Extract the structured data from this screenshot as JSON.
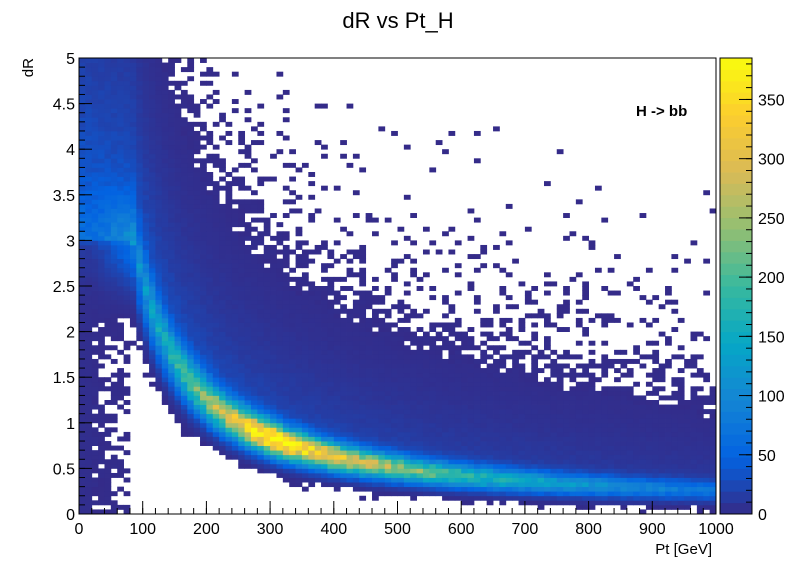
{
  "chart_data": {
    "type": "heatmap",
    "title": "dR vs Pt_H",
    "xlabel": "Pt [GeV]",
    "ylabel": "dR",
    "annotation": "H -> bb",
    "xlim": [
      0,
      1000
    ],
    "ylim": [
      0,
      5
    ],
    "x_bins": 100,
    "y_bins": 100,
    "x_ticks": [
      0,
      100,
      200,
      300,
      400,
      500,
      600,
      700,
      800,
      900,
      1000
    ],
    "x_tick_labels": [
      "0",
      "100",
      "200",
      "300",
      "400",
      "500",
      "600",
      "700",
      "800",
      "900",
      "1000"
    ],
    "y_ticks": [
      0,
      0.5,
      1,
      1.5,
      2,
      2.5,
      3,
      3.5,
      4,
      4.5,
      5
    ],
    "y_tick_labels": [
      "0",
      "0.5",
      "1",
      "1.5",
      "2",
      "2.5",
      "3",
      "3.5",
      "4",
      "4.5",
      "5"
    ],
    "z_range": [
      0,
      385
    ],
    "z_ticks": [
      0,
      50,
      100,
      150,
      200,
      250,
      300,
      350
    ],
    "z_tick_labels": [
      "0",
      "50",
      "100",
      "150",
      "200",
      "250",
      "300",
      "350"
    ],
    "ridge_model": "dR ≈ 2·mH/Pt with mH = 125 GeV (peak occupancy near Pt 300–400 GeV, dR 0.7–0.8)",
    "peak_count": 380,
    "palette": [
      "#352a87",
      "#0363e1",
      "#1485d4",
      "#06a7c6",
      "#38b99e",
      "#92bf73",
      "#d9ba56",
      "#fcce2e",
      "#f9fb0e"
    ]
  }
}
